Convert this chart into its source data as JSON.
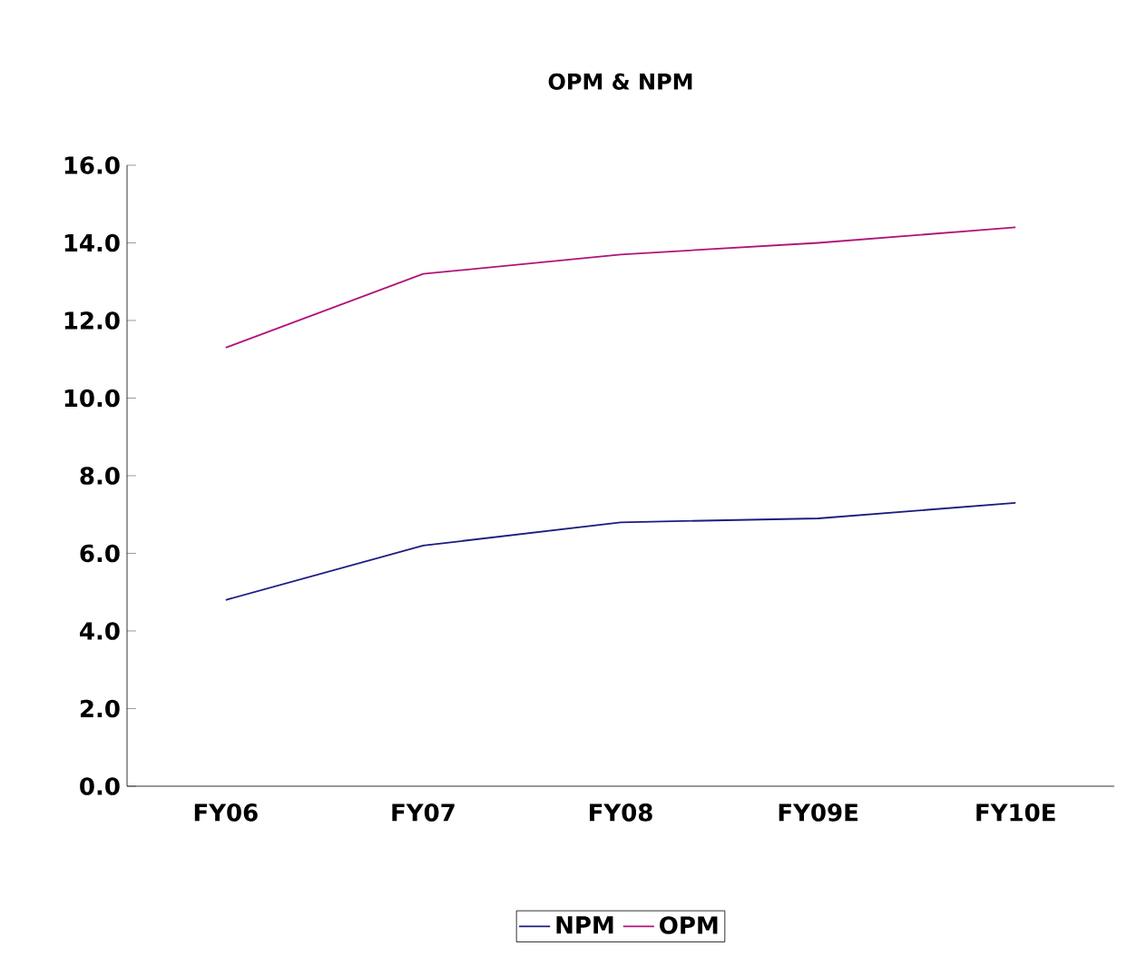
{
  "chart_data": {
    "type": "line",
    "title": "OPM & NPM",
    "categories": [
      "FY06",
      "FY07",
      "FY08",
      "FY09E",
      "FY10E"
    ],
    "series": [
      {
        "name": "NPM",
        "color": "#1c1c80",
        "values": [
          4.8,
          6.2,
          6.8,
          6.9,
          7.3
        ]
      },
      {
        "name": "OPM",
        "color": "#b0147a",
        "values": [
          11.3,
          13.2,
          13.7,
          14.0,
          14.4
        ]
      }
    ],
    "ylim": [
      0,
      16
    ],
    "yticks": [
      {
        "value": 0,
        "label": "0.0"
      },
      {
        "value": 2,
        "label": "2.0"
      },
      {
        "value": 4,
        "label": "4.0"
      },
      {
        "value": 6,
        "label": "6.0"
      },
      {
        "value": 8,
        "label": "8.0"
      },
      {
        "value": 10,
        "label": "10.0"
      },
      {
        "value": 12,
        "label": "12.0"
      },
      {
        "value": 14,
        "label": "14.0"
      },
      {
        "value": 16,
        "label": "16.0"
      }
    ],
    "legend": "bottom",
    "marker": "none",
    "line_style": "solid",
    "grid": false
  }
}
